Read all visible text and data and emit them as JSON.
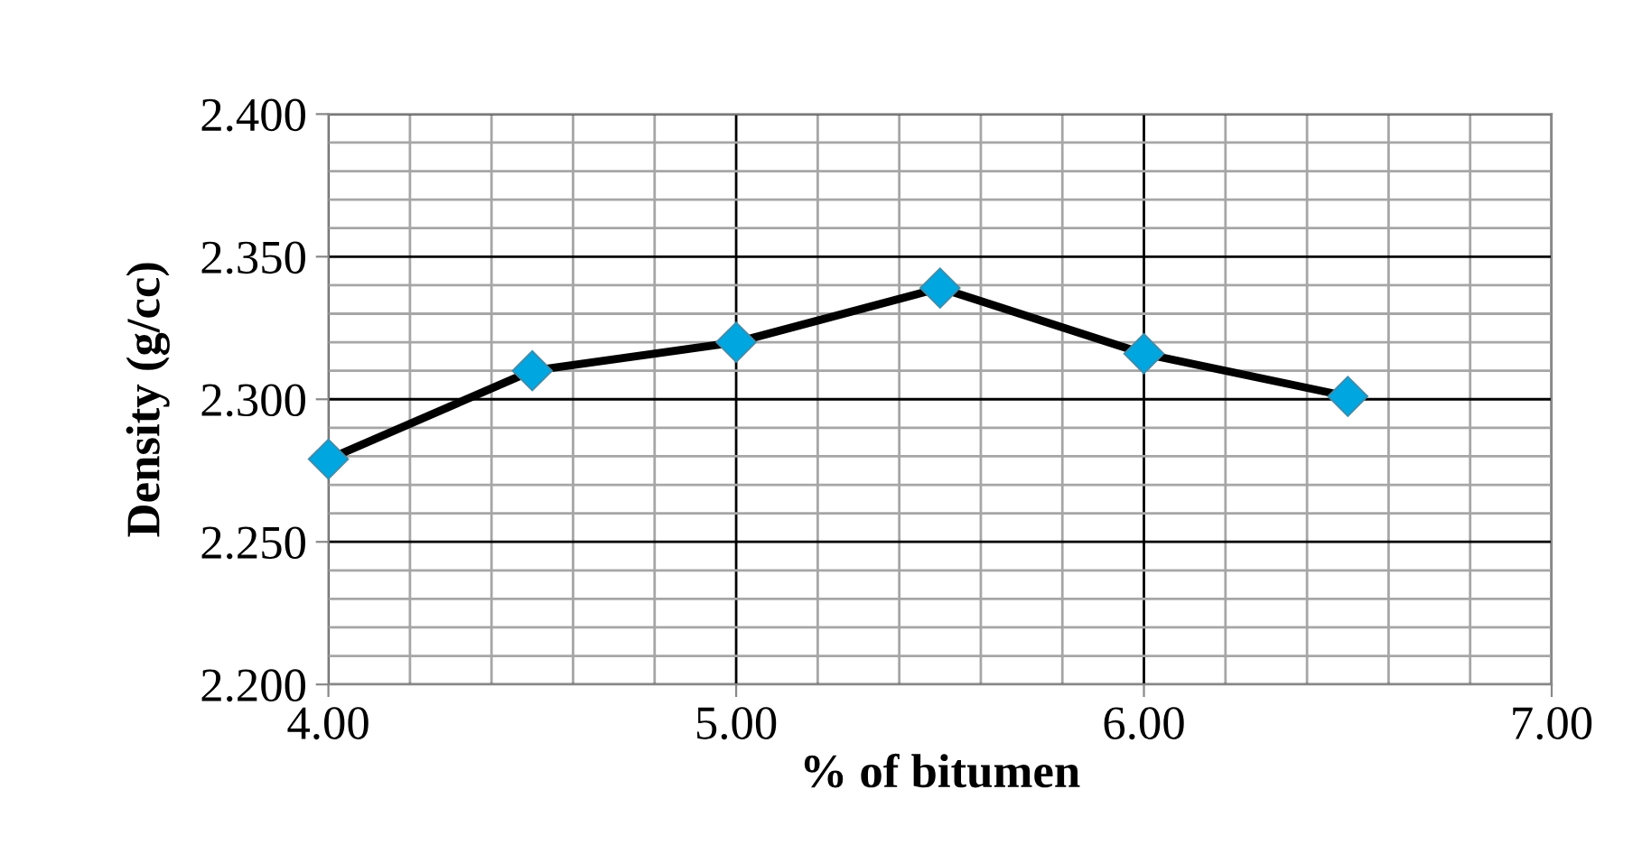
{
  "chart_data": {
    "type": "line",
    "xlabel": "% of bitumen",
    "ylabel": "Density (g/cc)",
    "x": [
      4.0,
      4.5,
      5.0,
      5.5,
      6.0,
      6.5
    ],
    "series": [
      {
        "color": "#000000",
        "values": [
          2.279,
          2.31,
          2.32,
          2.339,
          2.316,
          2.301
        ]
      }
    ],
    "marker": "diamond",
    "line_style": "solid",
    "grid": true,
    "xlim": [
      4.0,
      7.0
    ],
    "xticks": [
      {
        "value": 4,
        "label": "4.00"
      },
      {
        "value": 5,
        "label": "5.00"
      },
      {
        "value": 6,
        "label": "6.00"
      },
      {
        "value": 7,
        "label": "7.00"
      }
    ],
    "ylim": [
      2.2,
      2.4
    ],
    "yticks": [
      {
        "value": 2.2,
        "label": "2.200"
      },
      {
        "value": 2.25,
        "label": "2.250"
      },
      {
        "value": 2.3,
        "label": "2.300"
      },
      {
        "value": 2.35,
        "label": "2.350"
      },
      {
        "value": 2.4,
        "label": "2.400"
      }
    ]
  }
}
